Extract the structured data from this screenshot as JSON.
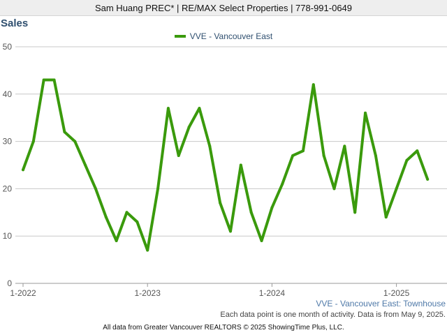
{
  "header": {
    "text": "Sam Huang PREC* | RE/MAX Select Properties | 778-991-0649"
  },
  "chart_data": {
    "type": "line",
    "title": "Sales",
    "subtitle": "VVE - Vancouver East: Townhouse",
    "note": "Each data point is one month of activity. Data is from May 9, 2025.",
    "credit": "All data from Greater Vancouver REALTORS © 2025 ShowingTime Plus, LLC.",
    "legend_position": "top-center",
    "grid": true,
    "xlabel": "",
    "ylabel": "",
    "ylim": [
      0,
      50
    ],
    "y_ticks": [
      0,
      10,
      20,
      30,
      40,
      50
    ],
    "x_ticks": [
      "1-2022",
      "1-2023",
      "1-2024",
      "1-2025"
    ],
    "x": [
      "2022-01",
      "2022-02",
      "2022-03",
      "2022-04",
      "2022-05",
      "2022-06",
      "2022-07",
      "2022-08",
      "2022-09",
      "2022-10",
      "2022-11",
      "2022-12",
      "2023-01",
      "2023-02",
      "2023-03",
      "2023-04",
      "2023-05",
      "2023-06",
      "2023-07",
      "2023-08",
      "2023-09",
      "2023-10",
      "2023-11",
      "2023-12",
      "2024-01",
      "2024-02",
      "2024-03",
      "2024-04",
      "2024-05",
      "2024-06",
      "2024-07",
      "2024-08",
      "2024-09",
      "2024-10",
      "2024-11",
      "2024-12",
      "2025-01",
      "2025-02",
      "2025-03",
      "2025-04"
    ],
    "series": [
      {
        "name": "VVE - Vancouver East",
        "color": "#3a9a0c",
        "values": [
          24,
          30,
          43,
          43,
          32,
          30,
          25,
          20,
          14,
          9,
          15,
          13,
          7,
          20,
          37,
          27,
          33,
          37,
          29,
          17,
          11,
          25,
          15,
          9,
          16,
          21,
          27,
          28,
          42,
          27,
          20,
          29,
          15,
          36,
          27,
          14,
          20,
          26,
          28,
          22
        ]
      }
    ]
  }
}
